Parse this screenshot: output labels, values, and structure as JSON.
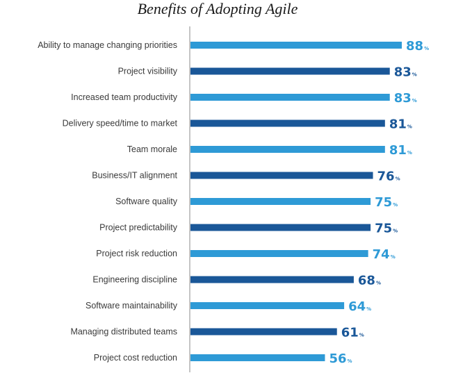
{
  "chart_data": {
    "type": "bar",
    "orientation": "horizontal",
    "title": "Benefits of Adopting Agile",
    "categories": [
      "Ability to manage changing priorities",
      "Project visibility",
      "Increased team productivity",
      "Delivery speed/time to market",
      "Team morale",
      "Business/IT alignment",
      "Software quality",
      "Project predictability",
      "Project risk reduction",
      "Engineering discipline",
      "Software maintainability",
      "Managing distributed teams",
      "Project cost reduction"
    ],
    "values": [
      88,
      83,
      83,
      81,
      81,
      76,
      75,
      75,
      74,
      68,
      64,
      61,
      56
    ],
    "value_labels": [
      "88",
      "83",
      "83",
      "81",
      "81",
      "76",
      "75",
      "75",
      "74",
      "68",
      "64",
      "61",
      "56"
    ],
    "unit_suffix": "%",
    "xlim": [
      0,
      100
    ],
    "grid": false,
    "legend": "none",
    "colors": {
      "light": "#2e9ad6",
      "dark": "#1a5798",
      "axis": "#8a8a8a",
      "title": "#1a1a1a",
      "label": "#3a3a3a"
    },
    "color_pattern": [
      "light",
      "dark"
    ]
  }
}
